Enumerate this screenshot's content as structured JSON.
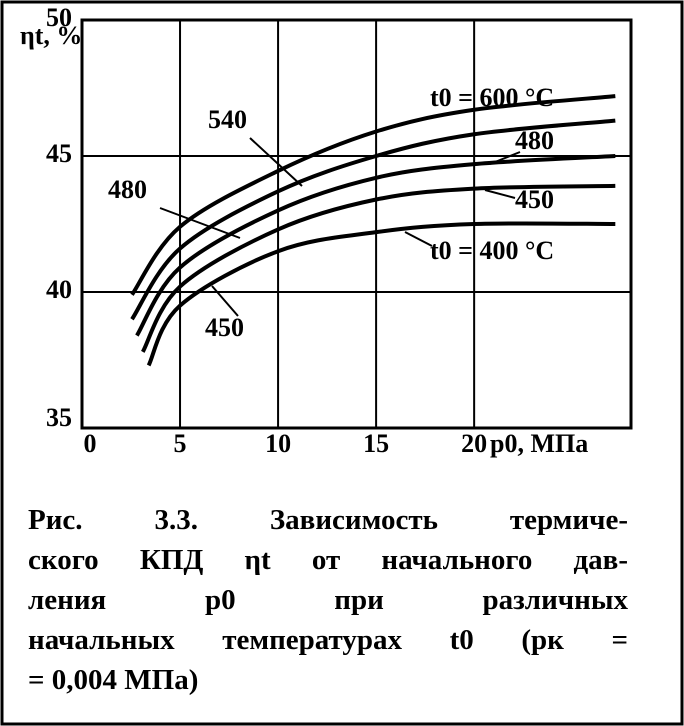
{
  "chart_data": {
    "type": "line",
    "y_label": "ηt, %",
    "x_label": "p0, МПа",
    "xlim": [
      0,
      28
    ],
    "ylim": [
      35,
      50
    ],
    "xticks": [
      0,
      5,
      10,
      15,
      20
    ],
    "yticks": [
      35,
      40,
      45,
      50
    ],
    "grid": true,
    "series": [
      {
        "name": "t0 = 600 °C",
        "color": "#000000",
        "x": [
          2.55,
          5,
          10,
          15,
          20,
          27.2
        ],
        "values": [
          39.9,
          42.4,
          44.45,
          45.9,
          46.7,
          47.2
        ]
      },
      {
        "name": "540",
        "color": "#000000",
        "x": [
          2.55,
          5,
          10,
          15,
          20,
          27.2
        ],
        "values": [
          39.0,
          41.6,
          43.7,
          45.0,
          45.8,
          46.3
        ]
      },
      {
        "name": "480",
        "color": "#000000",
        "x": [
          2.8,
          5,
          10,
          15,
          20,
          27.2
        ],
        "values": [
          38.4,
          40.9,
          43.0,
          44.2,
          44.7,
          45.0
        ]
      },
      {
        "name": "450",
        "color": "#000000",
        "x": [
          3.1,
          5,
          10,
          15,
          20,
          27.2
        ],
        "values": [
          37.8,
          40.2,
          42.3,
          43.4,
          43.8,
          43.9
        ]
      },
      {
        "name": "t0 = 400 °C",
        "color": "#000000",
        "x": [
          3.4,
          5,
          10,
          15,
          20,
          27.2
        ],
        "values": [
          37.3,
          39.5,
          41.5,
          42.2,
          42.5,
          42.5
        ]
      }
    ],
    "annotations": [
      "480",
      "450"
    ]
  },
  "caption": {
    "lines": [
      "Рис. 3.3. Зависимость термиче-",
      "ского КПД ηt от начального дав-",
      "ления p0 при различных",
      "начальных температурах t0 (pк =",
      "= 0,004 МПа)"
    ]
  }
}
